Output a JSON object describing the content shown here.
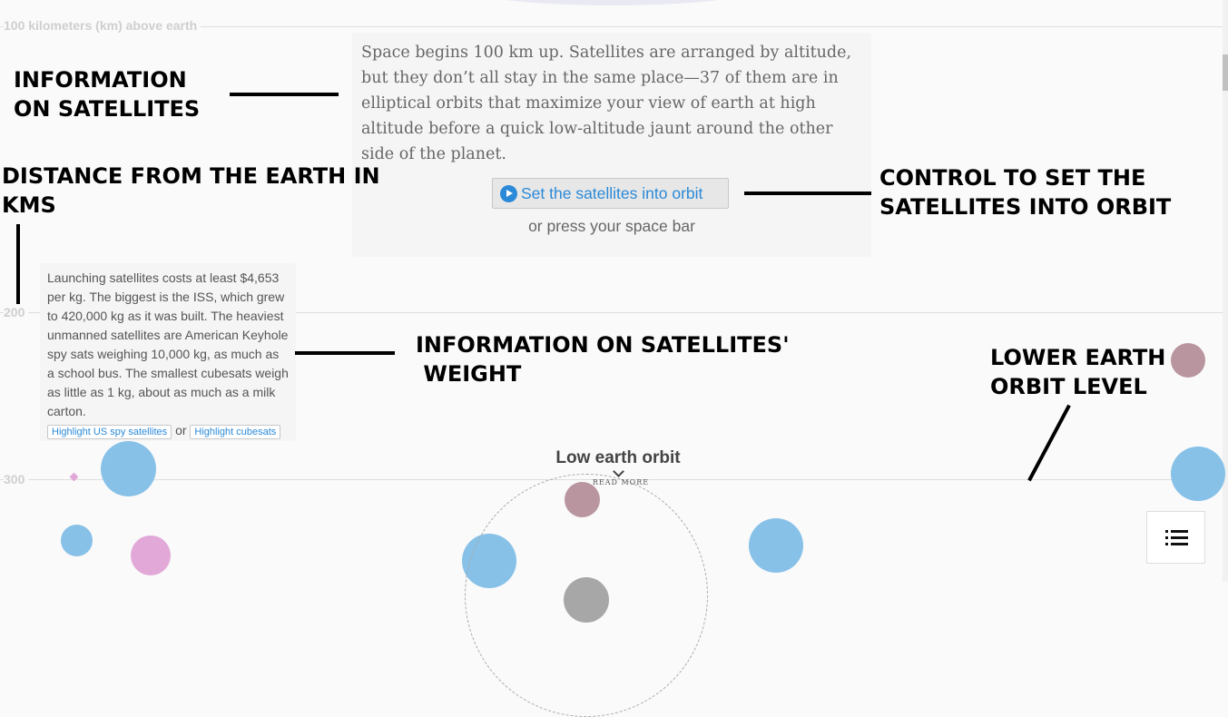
{
  "axis": {
    "label_100": "100 kilometers (km) above earth",
    "label_200": "200",
    "label_300": "300"
  },
  "intro": {
    "text": "Space begins 100 km up. Satellites are arranged by altitude, but they don’t all stay in the same place—37 of them are in elliptical orbits that maximize your view of earth at high altitude before a quick low-altitude jaunt around the other side of the planet.",
    "orbit_button_label": "Set the satellites into orbit",
    "press_hint": "or press your space bar"
  },
  "weight_info": {
    "text": "Launching satellites costs at least $4,653 per kg. The biggest is the ISS, which grew to 420,000 kg as it was built. The heaviest unmanned satellites are American Keyhole spy sats weighing 10,000 kg, as much as a school bus. The smallest cubesats weigh as little as 1 kg, about as much as a milk carton.",
    "highlight_spy_label": "Highlight US spy satellites",
    "or_text": "or",
    "highlight_cubesats_label": "Highlight cubesats"
  },
  "leo": {
    "title": "Low earth orbit",
    "read_more": "READ MORE"
  },
  "annotations": {
    "info_satellites": "INFORMATION\nON SATELLITES",
    "distance": "DISTANCE FROM THE EARTH IN\nKMS",
    "control": "CONTROL TO SET THE\nSATELLITES INTO ORBIT",
    "weight": "INFORMATION ON SATELLITES'\n WEIGHT",
    "lower_orbit": "LOWER EARTH\nORBIT LEVEL"
  },
  "colors": {
    "blue_satellite": "#87c1e8",
    "mauve_satellite": "#b9959f",
    "pink_satellite": "#e2a8d8",
    "button_text": "#2b8ad8"
  },
  "icons": {
    "play": "play-icon",
    "menu": "list-menu-icon"
  }
}
